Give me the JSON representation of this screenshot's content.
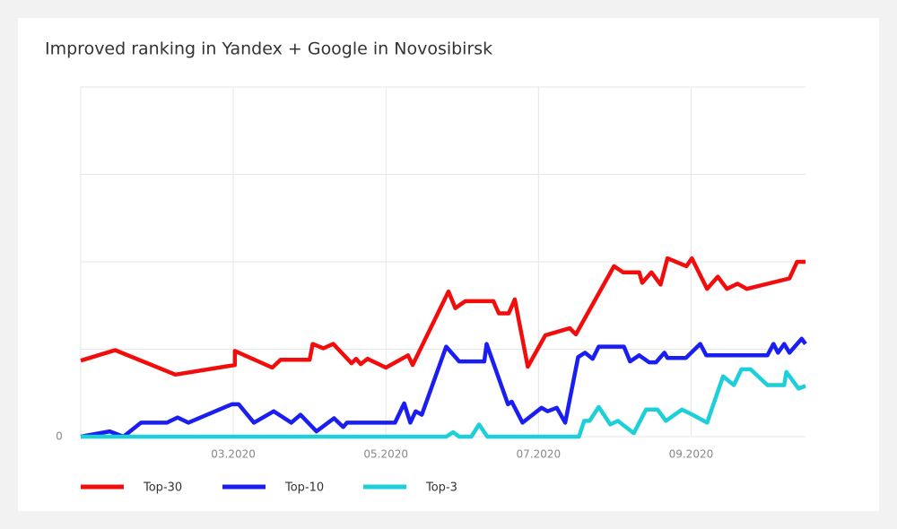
{
  "chart_data": {
    "type": "line",
    "title": "Improved ranking in Yandex + Google in Novosibirsk",
    "xlim": [
      1,
      10.5
    ],
    "xticks": [
      {
        "value": 3,
        "label": "03.2020"
      },
      {
        "value": 5,
        "label": "05.2020"
      },
      {
        "value": 7,
        "label": "07.2020"
      },
      {
        "value": 9,
        "label": "09.2020"
      }
    ],
    "ylim": [
      0,
      40
    ],
    "yticks": [
      0,
      {
        "value": 10,
        "label": null
      },
      {
        "value": 20,
        "label": null
      },
      {
        "value": 30,
        "label": null
      },
      {
        "value": 40,
        "label": null
      }
    ],
    "grid": true,
    "series": [
      {
        "name": "Top-30",
        "color": "#f20d0d",
        "x": [
          1.0,
          1.45,
          2.24,
          3.02,
          3.02,
          3.51,
          3.62,
          4.0,
          4.04,
          4.18,
          4.31,
          4.55,
          4.61,
          4.67,
          4.76,
          5.0,
          5.29,
          5.35,
          5.82,
          5.91,
          6.04,
          6.41,
          6.48,
          6.61,
          6.69,
          6.86,
          7.09,
          7.41,
          7.49,
          7.99,
          8.11,
          8.32,
          8.36,
          8.48,
          8.6,
          8.69,
          8.94,
          9.01,
          9.21,
          9.35,
          9.47,
          9.61,
          9.73,
          10.29,
          10.39,
          10.5
        ],
        "values": [
          8.7,
          9.9,
          7.1,
          8.2,
          9.8,
          7.9,
          8.8,
          8.8,
          10.6,
          10.1,
          10.6,
          8.4,
          8.9,
          8.3,
          8.9,
          7.9,
          9.3,
          8.2,
          16.6,
          14.7,
          15.5,
          15.5,
          14.1,
          14.1,
          15.7,
          8.0,
          11.6,
          12.4,
          11.7,
          19.5,
          18.8,
          18.8,
          17.6,
          18.8,
          17.4,
          20.4,
          19.5,
          20.4,
          16.9,
          18.3,
          16.9,
          17.5,
          16.9,
          18.1,
          20.0,
          20.0
        ]
      },
      {
        "name": "Top-10",
        "color": "#1a1ef0",
        "x": [
          1.0,
          1.38,
          1.56,
          1.79,
          2.13,
          2.27,
          2.41,
          2.98,
          3.07,
          3.27,
          3.53,
          3.76,
          3.88,
          4.09,
          4.32,
          4.44,
          4.49,
          5.12,
          5.24,
          5.32,
          5.39,
          5.47,
          5.79,
          5.96,
          6.29,
          6.32,
          6.6,
          6.65,
          6.79,
          7.04,
          7.12,
          7.24,
          7.35,
          7.52,
          7.61,
          7.71,
          7.79,
          8.12,
          8.2,
          8.32,
          8.45,
          8.54,
          8.65,
          8.69,
          8.93,
          9.12,
          9.2,
          10.0,
          10.08,
          10.14,
          10.22,
          10.29,
          10.45,
          10.5
        ],
        "values": [
          0,
          0.6,
          0,
          1.6,
          1.6,
          2.2,
          1.6,
          3.7,
          3.7,
          1.6,
          2.9,
          1.6,
          2.5,
          0.6,
          2.1,
          1.1,
          1.6,
          1.6,
          3.8,
          1.6,
          2.9,
          2.5,
          10.3,
          8.6,
          8.6,
          10.6,
          3.7,
          4.0,
          1.6,
          3.3,
          2.9,
          3.3,
          1.6,
          9.1,
          9.6,
          8.9,
          10.3,
          10.3,
          8.6,
          9.3,
          8.5,
          8.5,
          9.6,
          9.0,
          9.0,
          10.6,
          9.3,
          9.3,
          10.6,
          9.6,
          10.6,
          9.6,
          11.2,
          10.6
        ]
      },
      {
        "name": "Top-3",
        "color": "#1ccfd9",
        "x": [
          1.0,
          5.79,
          5.88,
          5.96,
          6.12,
          6.22,
          6.33,
          7.53,
          7.6,
          7.67,
          7.79,
          7.94,
          8.04,
          8.25,
          8.41,
          8.56,
          8.67,
          8.88,
          9.02,
          9.21,
          9.42,
          9.56,
          9.66,
          9.78,
          10.0,
          10.22,
          10.25,
          10.41,
          10.5
        ],
        "values": [
          0,
          0,
          0.5,
          0,
          0,
          1.4,
          0,
          0,
          1.8,
          1.8,
          3.4,
          1.4,
          1.8,
          0.4,
          3.1,
          3.1,
          1.8,
          3.1,
          2.5,
          1.6,
          6.9,
          5.9,
          7.7,
          7.7,
          5.9,
          5.9,
          7.4,
          5.5,
          5.8
        ]
      }
    ]
  }
}
